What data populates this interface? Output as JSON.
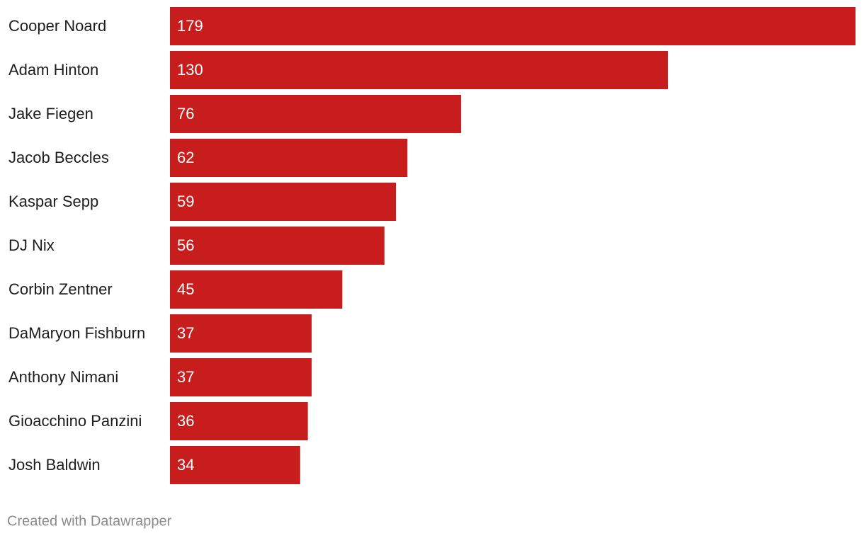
{
  "chart_data": {
    "type": "bar",
    "orientation": "horizontal",
    "color": "#c71e1d",
    "categories": [
      "Cooper Noard",
      "Adam Hinton",
      "Jake Fiegen",
      "Jacob Beccles",
      "Kaspar Sepp",
      "DJ Nix",
      "Corbin Zentner",
      "DaMaryon Fishburn",
      "Anthony Nimani",
      "Gioacchino Panzini",
      "Josh Baldwin"
    ],
    "values": [
      179,
      130,
      76,
      62,
      59,
      56,
      45,
      37,
      37,
      36,
      34
    ],
    "credit": "Created with Datawrapper"
  }
}
